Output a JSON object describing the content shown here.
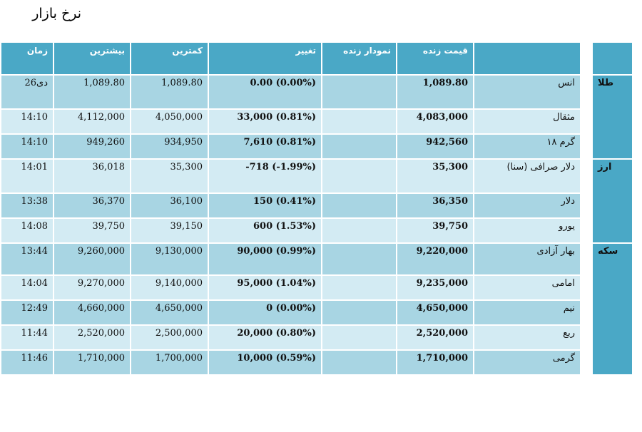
{
  "title": "نرخ بازار",
  "headers": {
    "time": "زمان",
    "high": "بیشترین",
    "low": "کمترین",
    "change": "تغییر",
    "live_chart": "نمودار زنده",
    "live_price": "قیمت زنده",
    "name": "",
    "category": ""
  },
  "groups": [
    {
      "name": "طلا",
      "rows": [
        {
          "time": "26دی",
          "high": "1,089.80",
          "low": "1,089.80",
          "change": "0.00 (0.00%)",
          "price": "1,089.80",
          "name": "انس"
        },
        {
          "time": "14:10",
          "high": "4,112,000",
          "low": "4,050,000",
          "change": "33,000 (0.81%)",
          "price": "4,083,000",
          "name": "مثقال"
        },
        {
          "time": "14:10",
          "high": "949,260",
          "low": "934,950",
          "change": "7,610 (0.81%)",
          "price": "942,560",
          "name": "گرم ۱۸"
        }
      ]
    },
    {
      "name": "ارز",
      "rows": [
        {
          "time": "14:01",
          "high": "36,018",
          "low": "35,300",
          "change": "-718 (-1.99%)",
          "price": "35,300",
          "name": "دلار صرافی (سنا)"
        },
        {
          "time": "13:38",
          "high": "36,370",
          "low": "36,100",
          "change": "150 (0.41%)",
          "price": "36,350",
          "name": "دلار"
        },
        {
          "time": "14:08",
          "high": "39,750",
          "low": "39,150",
          "change": "600 (1.53%)",
          "price": "39,750",
          "name": "یورو"
        }
      ]
    },
    {
      "name": "سکه",
      "rows": [
        {
          "time": "13:44",
          "high": "9,260,000",
          "low": "9,130,000",
          "change": "90,000 (0.99%)",
          "price": "9,220,000",
          "name": "بهار آزادی"
        },
        {
          "time": "14:04",
          "high": "9,270,000",
          "low": "9,140,000",
          "change": "95,000 (1.04%)",
          "price": "9,235,000",
          "name": "امامی"
        },
        {
          "time": "12:49",
          "high": "4,660,000",
          "low": "4,650,000",
          "change": "0 (0.00%)",
          "price": "4,650,000",
          "name": "نیم"
        },
        {
          "time": "11:44",
          "high": "2,520,000",
          "low": "2,500,000",
          "change": "20,000 (0.80%)",
          "price": "2,520,000",
          "name": "ربع"
        },
        {
          "time": "11:46",
          "high": "1,710,000",
          "low": "1,700,000",
          "change": "10,000 (0.59%)",
          "price": "1,710,000",
          "name": "گرمی"
        }
      ]
    }
  ]
}
